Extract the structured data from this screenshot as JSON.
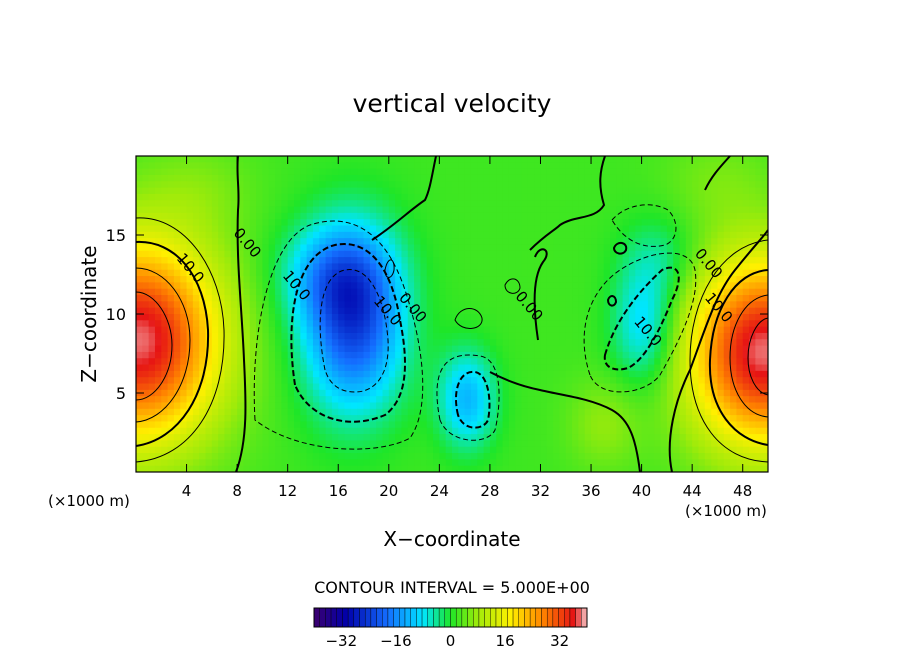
{
  "chart_data": {
    "type": "heatmap",
    "title": "vertical velocity",
    "xlabel": "X−coordinate",
    "ylabel": "Z−coordinate",
    "x_unit_left": "(×1000 m)",
    "x_unit_right": "(×1000 m)",
    "xlim": [
      0,
      50
    ],
    "ylim": [
      0,
      20
    ],
    "xticks": [
      4,
      8,
      12,
      16,
      20,
      24,
      28,
      32,
      36,
      40,
      44,
      48
    ],
    "yticks": [
      5,
      10,
      15
    ],
    "contour_interval_text": "CONTOUR INTERVAL = 5.000E+00",
    "colorbar": {
      "range": [
        -40,
        40
      ],
      "ticks": [
        -32,
        -16,
        0,
        16,
        32
      ],
      "tick_labels": [
        "−32",
        "−16",
        "0",
        "16",
        "32"
      ]
    },
    "contour_labels": [
      {
        "text": "10.0",
        "x": 4.0,
        "y": 12.7
      },
      {
        "text": "0.00",
        "x": 8.5,
        "y": 14.3
      },
      {
        "text": "10.0",
        "x": 12.4,
        "y": 11.6
      },
      {
        "text": "10.0",
        "x": 19.6,
        "y": 10.0
      },
      {
        "text": "0.00",
        "x": 21.6,
        "y": 10.2
      },
      {
        "text": "0.00",
        "x": 30.8,
        "y": 10.3
      },
      {
        "text": "10.0",
        "x": 40.2,
        "y": 8.7
      },
      {
        "text": "0.00",
        "x": 45.0,
        "y": 13.0
      },
      {
        "text": "10.0",
        "x": 45.8,
        "y": 10.2
      }
    ],
    "extrema": [
      {
        "x": 0.3,
        "y": 8.3,
        "value": 36,
        "sx": 4.5,
        "sy": 4.5
      },
      {
        "x": 49.6,
        "y": 7.6,
        "value": 36,
        "sx": 4.2,
        "sy": 4.2
      },
      {
        "x": 17.2,
        "y": 9.6,
        "value": -25,
        "sx": 2.8,
        "sy": 4.0
      },
      {
        "x": 15.5,
        "y": 12.5,
        "value": -10,
        "sx": 3.0,
        "sy": 2.2
      },
      {
        "x": 26.2,
        "y": 4.6,
        "value": -14,
        "sx": 1.6,
        "sy": 2.2
      },
      {
        "x": 40.2,
        "y": 9.2,
        "value": -12,
        "sx": 1.8,
        "sy": 2.6
      },
      {
        "x": 41.5,
        "y": 13.5,
        "value": -6,
        "sx": 2.2,
        "sy": 2.0
      },
      {
        "x": 37.0,
        "y": 3.0,
        "value": 5,
        "sx": 2.0,
        "sy": 2.0
      },
      {
        "x": 5.0,
        "y": 18.0,
        "value": 3,
        "sx": 3.0,
        "sy": 2.0
      },
      {
        "x": 46.0,
        "y": 18.5,
        "value": 3,
        "sx": 3.0,
        "sy": 2.0
      }
    ],
    "grid": false,
    "legend": "bottom-center colorbar"
  }
}
